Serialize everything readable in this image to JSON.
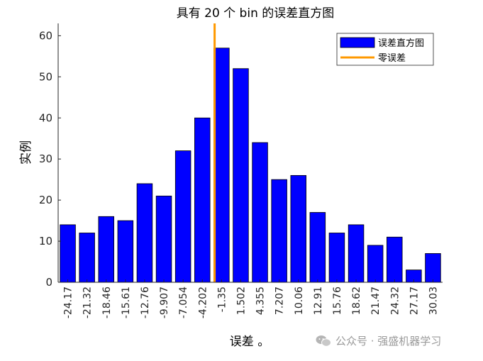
{
  "chart_data": {
    "type": "bar",
    "title": "具有 20 个 bin 的误差直方图",
    "xlabel": "误差 。",
    "ylabel": "实例",
    "categories": [
      "-24.17",
      "-21.32",
      "-18.46",
      "-15.61",
      "-12.76",
      "-9.907",
      "-7.054",
      "-4.202",
      "-1.35",
      "1.502",
      "4.355",
      "7.207",
      "10.06",
      "12.91",
      "15.76",
      "18.62",
      "21.47",
      "24.32",
      "27.17",
      "30.03"
    ],
    "series": [
      {
        "name": "误差直方图",
        "values": [
          14,
          12,
          16,
          15,
          24,
          21,
          32,
          40,
          57,
          52,
          34,
          25,
          26,
          17,
          12,
          14,
          9,
          11,
          3,
          7
        ],
        "color": "#0000ff"
      }
    ],
    "zero_error": {
      "name": "零误差",
      "position": -0.36,
      "color": "#ff9900"
    },
    "ylim": [
      0,
      63
    ],
    "yticks": [
      0,
      10,
      20,
      30,
      40,
      50,
      60
    ],
    "grid": false,
    "legend_position": "top-right"
  },
  "watermark": {
    "text": "公众号 · 强盛机器学习",
    "icon": "wechat-icon"
  }
}
